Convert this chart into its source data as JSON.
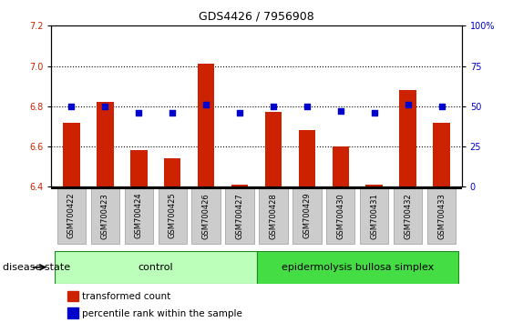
{
  "title": "GDS4426 / 7956908",
  "samples": [
    "GSM700422",
    "GSM700423",
    "GSM700424",
    "GSM700425",
    "GSM700426",
    "GSM700427",
    "GSM700428",
    "GSM700429",
    "GSM700430",
    "GSM700431",
    "GSM700432",
    "GSM700433"
  ],
  "transformed_count": [
    6.72,
    6.82,
    6.58,
    6.54,
    7.01,
    6.41,
    6.77,
    6.68,
    6.6,
    6.41,
    6.88,
    6.72
  ],
  "percentile_rank": [
    50,
    50,
    46,
    46,
    51,
    46,
    50,
    50,
    47,
    46,
    51,
    50
  ],
  "ylim_left": [
    6.4,
    7.2
  ],
  "ylim_right": [
    0,
    100
  ],
  "yticks_left": [
    6.4,
    6.6,
    6.8,
    7.0,
    7.2
  ],
  "yticks_right": [
    0,
    25,
    50,
    75,
    100
  ],
  "ytick_labels_right": [
    "0",
    "25",
    "50",
    "75",
    "100%"
  ],
  "bar_color": "#cc2200",
  "dot_color": "#0000cc",
  "control_samples": 6,
  "control_label": "control",
  "disease_label": "epidermolysis bullosa simplex",
  "legend_bar_label": "transformed count",
  "legend_dot_label": "percentile rank within the sample",
  "disease_state_label": "disease state",
  "control_color": "#bbffbb",
  "disease_color": "#44dd44",
  "xticklabel_bg": "#cccccc",
  "grid_dotted_values": [
    6.6,
    6.8,
    7.0
  ]
}
